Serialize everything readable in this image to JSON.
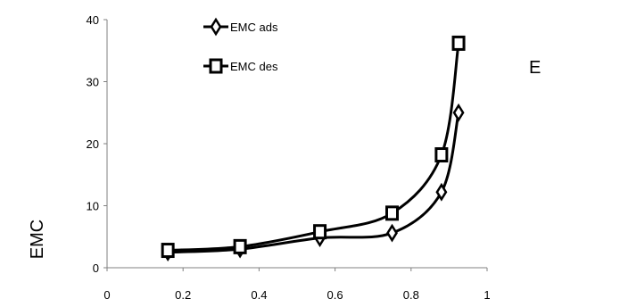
{
  "chart_data": {
    "type": "line",
    "title": "",
    "xlabel": "E",
    "ylabel": "EMC",
    "xlim": [
      0,
      1
    ],
    "ylim": [
      0,
      40
    ],
    "x_ticks": [
      "0",
      "0.2",
      "0.4",
      "0.6",
      "0.8",
      "1"
    ],
    "y_ticks": [
      "0",
      "10",
      "20",
      "30",
      "40"
    ],
    "grid": false,
    "legend_position": "top-left",
    "series": [
      {
        "name": "EMC ads",
        "marker": "diamond",
        "x": [
          0.16,
          0.35,
          0.56,
          0.75,
          0.88,
          0.925
        ],
        "y": [
          2.5,
          3.0,
          4.8,
          5.6,
          12.2,
          25.0
        ]
      },
      {
        "name": "EMC des",
        "marker": "square",
        "x": [
          0.16,
          0.35,
          0.56,
          0.75,
          0.88,
          0.925
        ],
        "y": [
          2.8,
          3.4,
          5.8,
          8.8,
          18.2,
          36.2
        ]
      }
    ],
    "colors": {
      "series": "#000000",
      "axis": "#808080"
    }
  }
}
